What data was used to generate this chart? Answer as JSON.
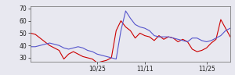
{
  "red_y": [
    50,
    49,
    46,
    43,
    40,
    38,
    36,
    29,
    33,
    35,
    33,
    31,
    30,
    29,
    26,
    27,
    28,
    30,
    52,
    60,
    55,
    52,
    46,
    50,
    48,
    47,
    44,
    48,
    45,
    47,
    46,
    43,
    45,
    43,
    37,
    35,
    36,
    38,
    42,
    45,
    61,
    54,
    47
  ],
  "blue_y": [
    39,
    39,
    40,
    41,
    42,
    41,
    40,
    38,
    37,
    38,
    39,
    38,
    36,
    35,
    33,
    32,
    31,
    30,
    29,
    52,
    68,
    62,
    57,
    55,
    54,
    52,
    48,
    47,
    47,
    47,
    46,
    45,
    44,
    43,
    46,
    46,
    44,
    43,
    44,
    46,
    48,
    52,
    54
  ],
  "xlim": [
    0,
    42
  ],
  "ylim": [
    27,
    72
  ],
  "yticks": [
    30,
    40,
    50,
    60,
    70
  ],
  "xtick_positions": [
    14,
    24,
    37
  ],
  "xtick_labels": [
    "10/25",
    "11/11",
    "11/25"
  ],
  "red_color": "#cc0000",
  "blue_color": "#5555cc",
  "bg_color": "#e8e8f0",
  "linewidth": 0.8
}
